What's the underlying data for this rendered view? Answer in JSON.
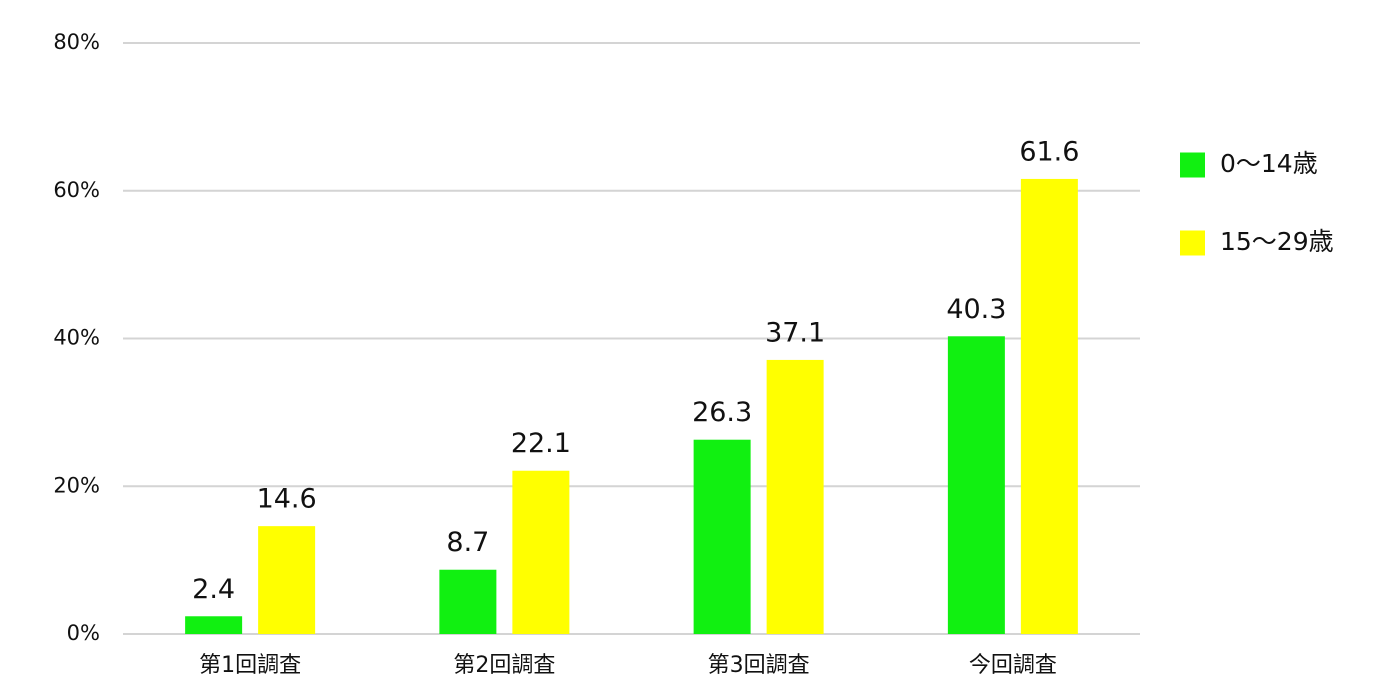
{
  "chart_data": {
    "type": "bar",
    "categories": [
      "第1回調査",
      "第2回調査",
      "第3回調査",
      "今回調査"
    ],
    "series": [
      {
        "name": "0〜14歳",
        "color": "#11f011",
        "values": [
          2.4,
          8.7,
          26.3,
          40.3
        ]
      },
      {
        "name": "15〜29歳",
        "color": "#ffff00",
        "values": [
          14.6,
          22.1,
          37.1,
          61.6
        ]
      }
    ],
    "ylim": [
      0,
      80
    ],
    "yticks": [
      {
        "value": 0,
        "label": "0%"
      },
      {
        "value": 20,
        "label": "20%"
      },
      {
        "value": 40,
        "label": "40%"
      },
      {
        "value": 60,
        "label": "60%"
      },
      {
        "value": 80,
        "label": "80%"
      }
    ],
    "grid": true,
    "legend": "right"
  }
}
